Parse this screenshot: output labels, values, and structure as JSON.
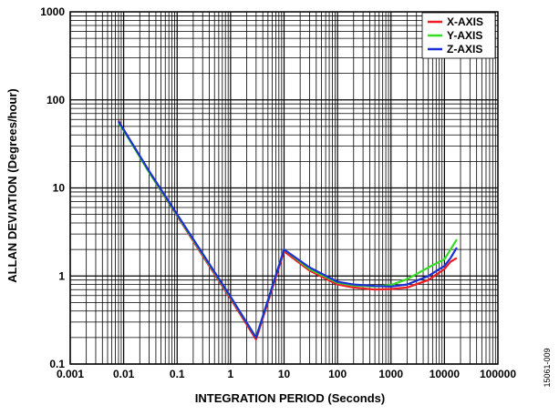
{
  "chart_data": {
    "type": "line",
    "xlabel": "INTEGRATION PERIOD (Seconds)",
    "ylabel": "ALLAN DEVIATION (Degrees/hour)",
    "xscale": "log",
    "yscale": "log",
    "xlim": [
      0.001,
      100000
    ],
    "ylim": [
      0.1,
      1000
    ],
    "x_ticks": [
      "0.001",
      "0.01",
      "0.1",
      "1",
      "10",
      "100",
      "1000",
      "10000",
      "100000"
    ],
    "y_ticks": [
      "0.1",
      "1",
      "10",
      "100",
      "1000"
    ],
    "grid": true,
    "legend_position": "top-right",
    "series": [
      {
        "name": "X-AXIS",
        "color": "#ee1c25",
        "points": [
          [
            0.008,
            58
          ],
          [
            0.01,
            46
          ],
          [
            0.03,
            15
          ],
          [
            0.1,
            4.8
          ],
          [
            0.3,
            1.7
          ],
          [
            1,
            0.55
          ],
          [
            3,
            0.19
          ],
          [
            10,
            1.9
          ],
          [
            30,
            1.15
          ],
          [
            100,
            0.8
          ],
          [
            200,
            0.74
          ],
          [
            500,
            0.7
          ],
          [
            1000,
            0.71
          ],
          [
            2000,
            0.74
          ],
          [
            5000,
            0.9
          ],
          [
            10000,
            1.2
          ],
          [
            13000,
            1.45
          ],
          [
            17000,
            1.6
          ]
        ]
      },
      {
        "name": "Y-AXIS",
        "color": "#33dd22",
        "points": [
          [
            0.008,
            55
          ],
          [
            0.01,
            45
          ],
          [
            0.03,
            15
          ],
          [
            0.1,
            4.9
          ],
          [
            0.3,
            1.75
          ],
          [
            1,
            0.57
          ],
          [
            3,
            0.2
          ],
          [
            10,
            2.0
          ],
          [
            30,
            1.2
          ],
          [
            100,
            0.84
          ],
          [
            200,
            0.78
          ],
          [
            500,
            0.76
          ],
          [
            1000,
            0.79
          ],
          [
            2000,
            0.92
          ],
          [
            5000,
            1.25
          ],
          [
            10000,
            1.55
          ],
          [
            13000,
            2.0
          ],
          [
            17000,
            2.6
          ]
        ]
      },
      {
        "name": "Z-AXIS",
        "color": "#1c2fd1",
        "points": [
          [
            0.008,
            57
          ],
          [
            0.01,
            46
          ],
          [
            0.03,
            15.5
          ],
          [
            0.1,
            5.0
          ],
          [
            0.3,
            1.8
          ],
          [
            1,
            0.58
          ],
          [
            3,
            0.2
          ],
          [
            10,
            2.0
          ],
          [
            30,
            1.25
          ],
          [
            100,
            0.86
          ],
          [
            200,
            0.8
          ],
          [
            500,
            0.77
          ],
          [
            1000,
            0.76
          ],
          [
            2000,
            0.8
          ],
          [
            5000,
            1.0
          ],
          [
            10000,
            1.3
          ],
          [
            13000,
            1.6
          ],
          [
            17000,
            2.1
          ]
        ]
      }
    ]
  },
  "figure_id": "15061-009"
}
